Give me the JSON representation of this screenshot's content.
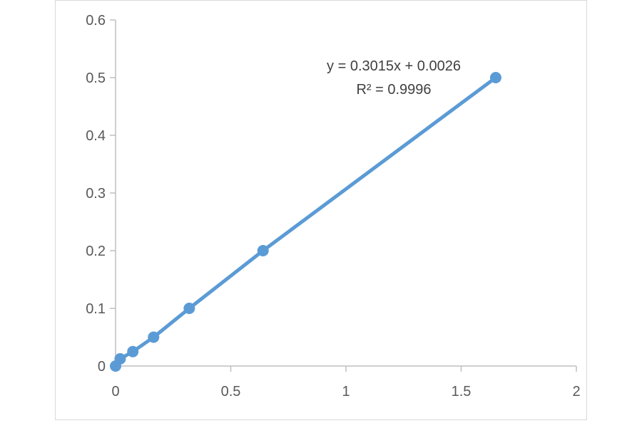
{
  "chart_data": {
    "type": "scatter",
    "title": "",
    "xlabel": "",
    "ylabel": "",
    "xlim": [
      0,
      2
    ],
    "ylim": [
      0,
      0.6
    ],
    "x_ticks": [
      "0",
      "0.5",
      "1",
      "1.5",
      "2"
    ],
    "y_ticks": [
      "0",
      "0.1",
      "0.2",
      "0.3",
      "0.4",
      "0.5",
      "0.6"
    ],
    "grid": false,
    "legend": "none",
    "series": [
      {
        "color": "#5b9bd5",
        "marker": "circle",
        "connected": true,
        "points": [
          {
            "x": 0.0,
            "y": 0.0
          },
          {
            "x": 0.02,
            "y": 0.0125
          },
          {
            "x": 0.075,
            "y": 0.025
          },
          {
            "x": 0.165,
            "y": 0.05
          },
          {
            "x": 0.32,
            "y": 0.1
          },
          {
            "x": 0.64,
            "y": 0.2
          },
          {
            "x": 1.65,
            "y": 0.5
          }
        ]
      }
    ],
    "trendline": {
      "equation": "y = 0.3015x + 0.0026",
      "r_squared": "R² = 0.9996"
    }
  }
}
